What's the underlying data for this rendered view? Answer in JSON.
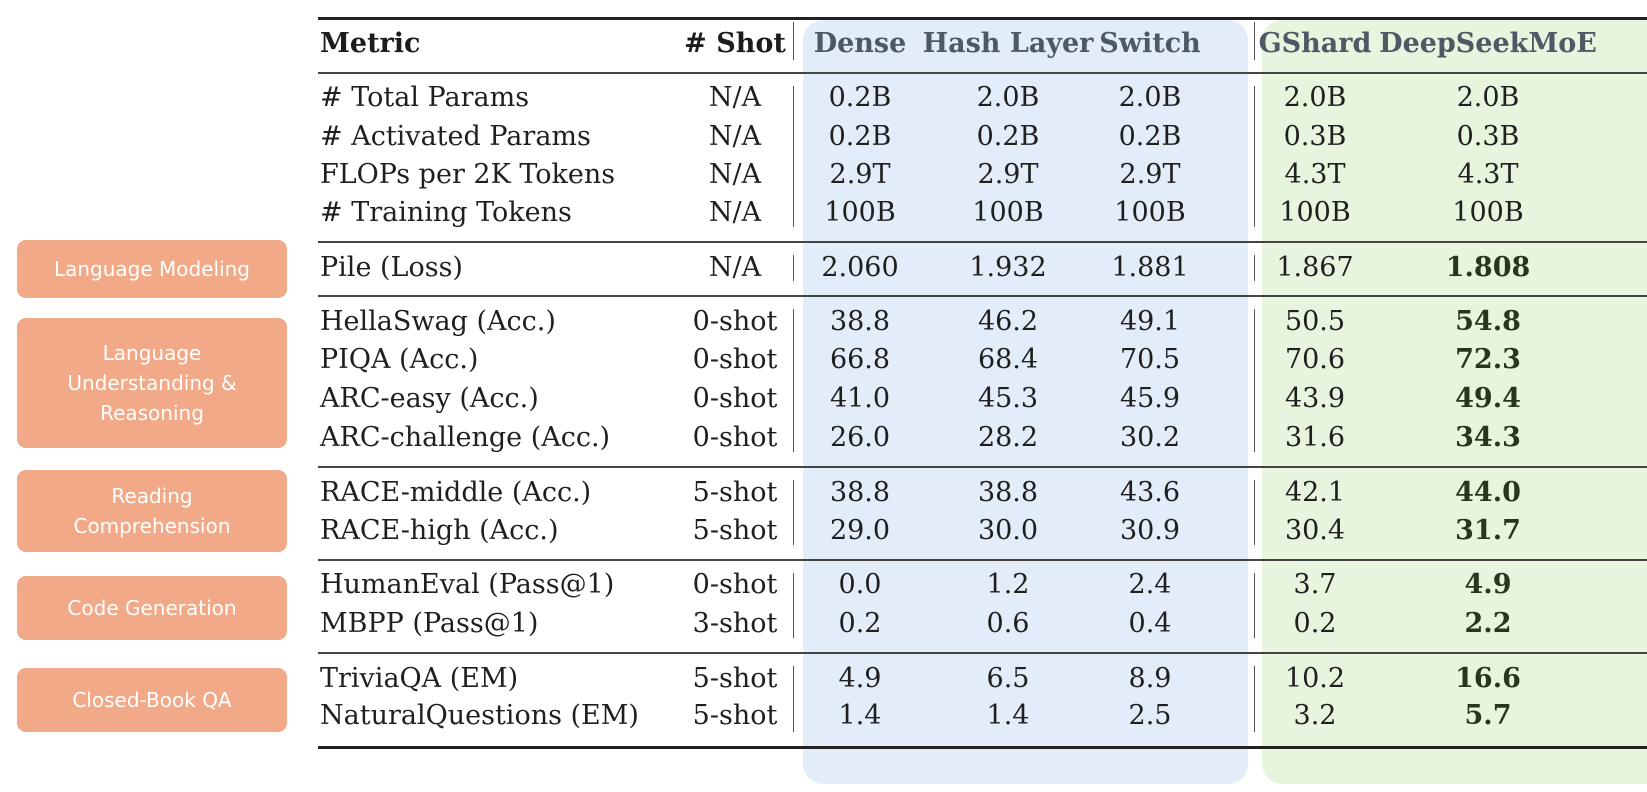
{
  "chart_data": {
    "type": "table",
    "headers": {
      "metric": "Metric",
      "shot": "# Shot",
      "models": [
        "Dense",
        "Hash Layer",
        "Switch",
        "GShard",
        "DeepSeekMoE"
      ]
    },
    "categories": [
      {
        "label": "Language Modeling"
      },
      {
        "label": "Language Understanding & Reasoning"
      },
      {
        "label": "Reading Comprehension"
      },
      {
        "label": "Code Generation"
      },
      {
        "label": "Closed-Book QA"
      }
    ],
    "groups": [
      {
        "rows": [
          {
            "metric": "# Total Params",
            "shot": "N/A",
            "values": [
              "0.2B",
              "2.0B",
              "2.0B",
              "2.0B",
              "2.0B"
            ]
          },
          {
            "metric": "# Activated Params",
            "shot": "N/A",
            "values": [
              "0.2B",
              "0.2B",
              "0.2B",
              "0.3B",
              "0.3B"
            ]
          },
          {
            "metric": "FLOPs per 2K Tokens",
            "shot": "N/A",
            "values": [
              "2.9T",
              "2.9T",
              "2.9T",
              "4.3T",
              "4.3T"
            ]
          },
          {
            "metric": "# Training Tokens",
            "shot": "N/A",
            "values": [
              "100B",
              "100B",
              "100B",
              "100B",
              "100B"
            ]
          }
        ]
      },
      {
        "rows": [
          {
            "metric": "Pile (Loss)",
            "shot": "N/A",
            "values": [
              "2.060",
              "1.932",
              "1.881",
              "1.867",
              "1.808"
            ],
            "bold": 4
          }
        ]
      },
      {
        "rows": [
          {
            "metric": "HellaSwag (Acc.)",
            "shot": "0-shot",
            "values": [
              "38.8",
              "46.2",
              "49.1",
              "50.5",
              "54.8"
            ],
            "bold": 4
          },
          {
            "metric": "PIQA (Acc.)",
            "shot": "0-shot",
            "values": [
              "66.8",
              "68.4",
              "70.5",
              "70.6",
              "72.3"
            ],
            "bold": 4
          },
          {
            "metric": "ARC-easy (Acc.)",
            "shot": "0-shot",
            "values": [
              "41.0",
              "45.3",
              "45.9",
              "43.9",
              "49.4"
            ],
            "bold": 4
          },
          {
            "metric": "ARC-challenge (Acc.)",
            "shot": "0-shot",
            "values": [
              "26.0",
              "28.2",
              "30.2",
              "31.6",
              "34.3"
            ],
            "bold": 4
          }
        ]
      },
      {
        "rows": [
          {
            "metric": "RACE-middle (Acc.)",
            "shot": "5-shot",
            "values": [
              "38.8",
              "38.8",
              "43.6",
              "42.1",
              "44.0"
            ],
            "bold": 4
          },
          {
            "metric": "RACE-high (Acc.)",
            "shot": "5-shot",
            "values": [
              "29.0",
              "30.0",
              "30.9",
              "30.4",
              "31.7"
            ],
            "bold": 4
          }
        ]
      },
      {
        "rows": [
          {
            "metric": "HumanEval (Pass@1)",
            "shot": "0-shot",
            "values": [
              "0.0",
              "1.2",
              "2.4",
              "3.7",
              "4.9"
            ],
            "bold": 4
          },
          {
            "metric": "MBPP (Pass@1)",
            "shot": "3-shot",
            "values": [
              "0.2",
              "0.6",
              "0.4",
              "0.2",
              "2.2"
            ],
            "bold": 4
          }
        ]
      },
      {
        "rows": [
          {
            "metric": "TriviaQA (EM)",
            "shot": "5-shot",
            "values": [
              "4.9",
              "6.5",
              "8.9",
              "10.2",
              "16.6"
            ],
            "bold": 4
          },
          {
            "metric": "NaturalQuestions (EM)",
            "shot": "5-shot",
            "values": [
              "1.4",
              "1.4",
              "2.5",
              "3.2",
              "5.7"
            ],
            "bold": 4
          }
        ]
      }
    ],
    "colors": {
      "dense_models_bg": "#e2edf9",
      "moe_models_bg": "#e7f4de",
      "category_pill": "#f1a988"
    }
  }
}
